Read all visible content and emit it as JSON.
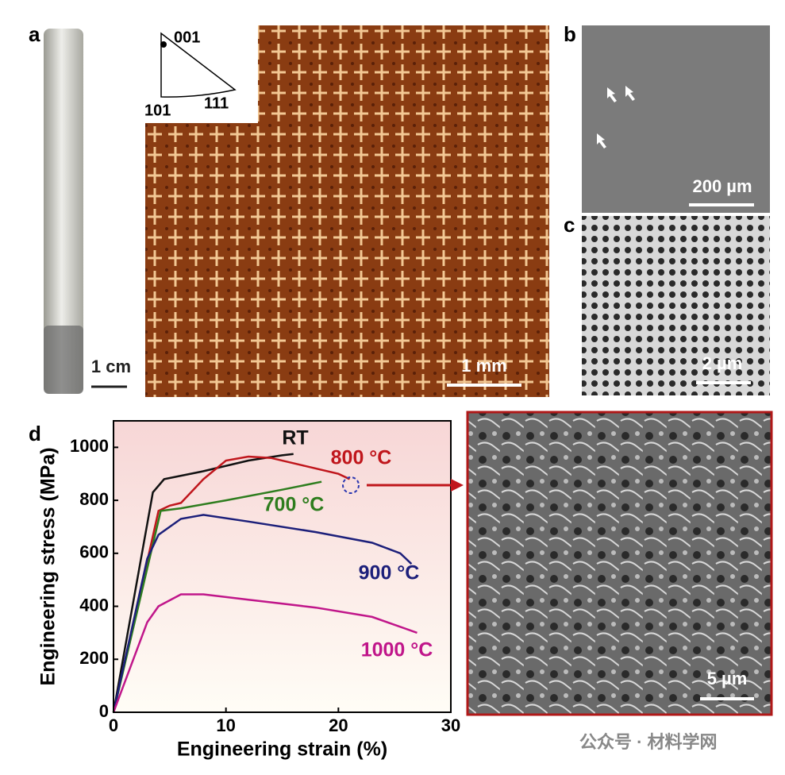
{
  "panels": {
    "a": {
      "label": "a",
      "rod_scale": "1 cm",
      "ipf": [
        "001",
        "101",
        "111"
      ],
      "micro_scale": "1 mm"
    },
    "b": {
      "label": "b",
      "scale": "200 µm"
    },
    "c": {
      "label": "c",
      "scale": "2 µm"
    },
    "d": {
      "label": "d",
      "fracture_scale": "5 µm"
    }
  },
  "chart_data": {
    "type": "line",
    "xlabel": "Engineering strain (%)",
    "ylabel": "Engineering stress (MPa)",
    "xlim": [
      0,
      30
    ],
    "ylim": [
      0,
      1100
    ],
    "xticks": [
      0,
      10,
      20,
      30
    ],
    "yticks": [
      0,
      200,
      400,
      600,
      800,
      1000
    ],
    "series": [
      {
        "name": "RT",
        "color": "#111111",
        "x": [
          0,
          3.5,
          4.5,
          8,
          12,
          15,
          16
        ],
        "values": [
          0,
          830,
          880,
          910,
          950,
          970,
          975
        ]
      },
      {
        "name": "800 °C",
        "color": "#c0161c",
        "x": [
          0,
          4,
          5,
          6,
          8,
          10,
          12,
          14,
          17,
          20,
          21
        ],
        "values": [
          0,
          760,
          780,
          790,
          880,
          950,
          965,
          960,
          930,
          900,
          880
        ]
      },
      {
        "name": "700 °C",
        "color": "#2e7d1e",
        "x": [
          0,
          4.2,
          6,
          10,
          15,
          18.5
        ],
        "values": [
          0,
          760,
          770,
          800,
          840,
          870
        ]
      },
      {
        "name": "900 °C",
        "color": "#1c1f7a",
        "x": [
          0,
          3,
          4,
          6,
          8,
          12,
          18,
          23,
          25.5,
          26.5
        ],
        "values": [
          0,
          580,
          670,
          730,
          745,
          720,
          680,
          640,
          600,
          560
        ]
      },
      {
        "name": "1000 °C",
        "color": "#c0168a",
        "x": [
          0,
          3,
          4,
          6,
          8,
          12,
          18,
          23,
          27
        ],
        "values": [
          0,
          340,
          400,
          445,
          445,
          425,
          395,
          360,
          300
        ]
      }
    ]
  },
  "watermark": "公众号 · 材料学网"
}
